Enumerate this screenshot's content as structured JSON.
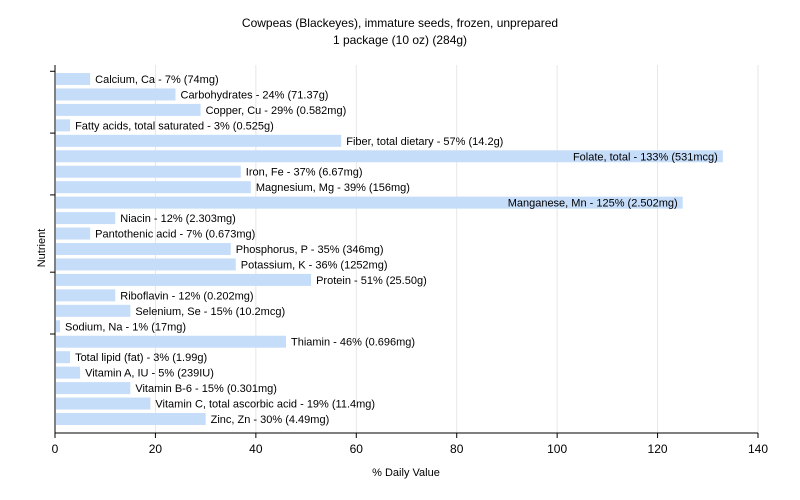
{
  "chart_data": {
    "type": "bar",
    "orientation": "horizontal",
    "title": "Cowpeas (Blackeyes), immature seeds, frozen, unprepared",
    "subtitle": "1 package (10 oz) (284g)",
    "xlabel": "% Daily Value",
    "ylabel": "Nutrient",
    "xlim": [
      0,
      140
    ],
    "xticks": [
      0,
      20,
      40,
      60,
      80,
      100,
      120,
      140
    ],
    "grid": true,
    "bar_color": "#c6ddfa",
    "categories": [
      "Calcium, Ca",
      "Carbohydrates",
      "Copper, Cu",
      "Fatty acids, total saturated",
      "Fiber, total dietary",
      "Folate, total",
      "Iron, Fe",
      "Magnesium, Mg",
      "Manganese, Mn",
      "Niacin",
      "Pantothenic acid",
      "Phosphorus, P",
      "Potassium, K",
      "Protein",
      "Riboflavin",
      "Selenium, Se",
      "Sodium, Na",
      "Thiamin",
      "Total lipid (fat)",
      "Vitamin A, IU",
      "Vitamin B-6",
      "Vitamin C, total ascorbic acid",
      "Zinc, Zn"
    ],
    "values": [
      7,
      24,
      29,
      3,
      57,
      133,
      37,
      39,
      125,
      12,
      7,
      35,
      36,
      51,
      12,
      15,
      1,
      46,
      3,
      5,
      15,
      19,
      30
    ],
    "labels": [
      "Calcium, Ca - 7% (74mg)",
      "Carbohydrates - 24% (71.37g)",
      "Copper, Cu - 29% (0.582mg)",
      "Fatty acids, total saturated - 3% (0.525g)",
      "Fiber, total dietary - 57% (14.2g)",
      "Folate, total - 133% (531mcg)",
      "Iron, Fe - 37% (6.67mg)",
      "Magnesium, Mg - 39% (156mg)",
      "Manganese, Mn - 125% (2.502mg)",
      "Niacin - 12% (2.303mg)",
      "Pantothenic acid - 7% (0.673mg)",
      "Phosphorus, P - 35% (346mg)",
      "Potassium, K - 36% (1252mg)",
      "Protein - 51% (25.50g)",
      "Riboflavin - 12% (0.202mg)",
      "Selenium, Se - 15% (10.2mcg)",
      "Sodium, Na - 1% (17mg)",
      "Thiamin - 46% (0.696mg)",
      "Total lipid (fat) - 3% (1.99g)",
      "Vitamin A, IU - 5% (239IU)",
      "Vitamin B-6 - 15% (0.301mg)",
      "Vitamin C, total ascorbic acid - 19% (11.4mg)",
      "Zinc, Zn - 30% (4.49mg)"
    ]
  }
}
